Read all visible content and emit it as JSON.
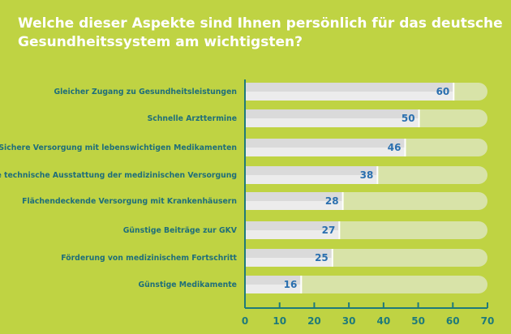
{
  "chart_data": {
    "type": "bar",
    "orientation": "horizontal",
    "title": "Welche dieser Aspekte sind Ihnen persönlich für das deutsche Gesundheitssystem am wichtigsten?",
    "categories": [
      "Gleicher Zugang zu Gesundheitsleistungen",
      "Schnelle Arzttermine",
      "Sichere Versorgung mit lebenswichtigen Medikamenten",
      "Gute technische Ausstattung der medizinischen Versorgung",
      "Flächendeckende Versorgung mit Krankenhäusern",
      "Günstige Beiträge zur GKV",
      "Förderung von medizinischem Fortschritt",
      "Günstige Medikamente"
    ],
    "values": [
      60,
      50,
      46,
      38,
      28,
      27,
      25,
      16
    ],
    "xlim": [
      0,
      70
    ],
    "xticks": [
      0,
      10,
      20,
      30,
      40,
      50,
      60,
      70
    ],
    "xlabel": "",
    "ylabel": "",
    "grid": false,
    "colors": {
      "background": "#bfd343",
      "bar": "#ececec",
      "track": "#d8e3a8",
      "label": "#1f6e7a",
      "value": "#2a6faf",
      "axis": "#1f7a7a"
    }
  }
}
